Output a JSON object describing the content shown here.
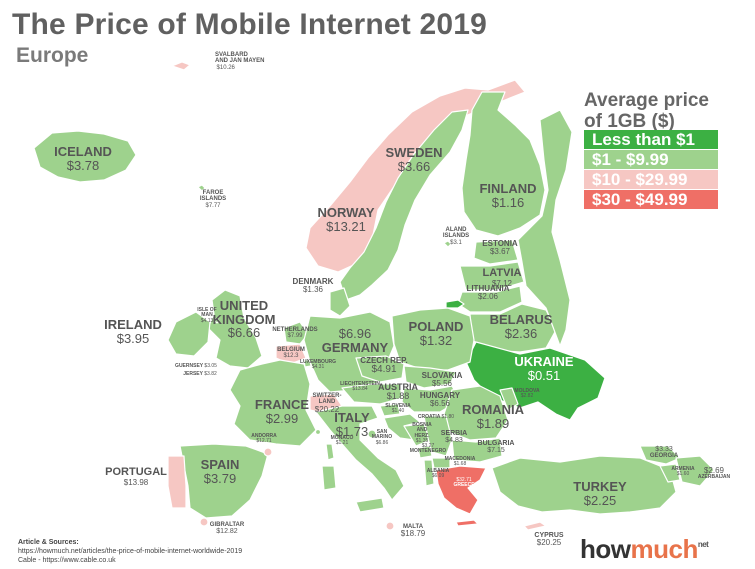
{
  "title": "The Price of Mobile Internet 2019",
  "subtitle": "Europe",
  "legend": {
    "title_line1": "Average price",
    "title_line2": "of 1GB ($)",
    "items": [
      {
        "label": "Less than $1",
        "color": "#3cb043"
      },
      {
        "label": "$1 - $9.99",
        "color": "#9ed28d"
      },
      {
        "label": "$10 - $29.99",
        "color": "#f6c7c3"
      },
      {
        "label": "$30 - $49.99",
        "color": "#ef6f66"
      }
    ]
  },
  "countries": {
    "svalbard": {
      "name": "SVALBARD\nAND JAN MAYEN",
      "price": "$10.26"
    },
    "iceland": {
      "name": "ICELAND",
      "price": "$3.78"
    },
    "faroe": {
      "name": "FAROE\nISLANDS",
      "price": "$7.77"
    },
    "norway": {
      "name": "NORWAY",
      "price": "$13.21"
    },
    "sweden": {
      "name": "SWEDEN",
      "price": "$3.66"
    },
    "finland": {
      "name": "FINLAND",
      "price": "$1.16"
    },
    "aland": {
      "name": "ALAND\nISLANDS",
      "price": "$3.1"
    },
    "estonia": {
      "name": "ESTONIA",
      "price": "$3.67"
    },
    "latvia": {
      "name": "LATVIA",
      "price": "$7.12"
    },
    "lithuania": {
      "name": "LITHUANIA",
      "price": "$2.06"
    },
    "denmark": {
      "name": "DENMARK",
      "price": "$1.36"
    },
    "united_kingdom": {
      "name": "UNITED\nKINGDOM",
      "price": "$6.66"
    },
    "isle_of_man": {
      "name": "ISLE OF\nMAN",
      "price": "$4.13"
    },
    "ireland": {
      "name": "IRELAND",
      "price": "$3.95"
    },
    "netherlands": {
      "name": "NETHERLANDS",
      "price": "$7.99"
    },
    "belgium": {
      "name": "BELGIUM",
      "price": "$12.3"
    },
    "luxembourg": {
      "name": "LUXEMBOURG",
      "price": "$4.31"
    },
    "germany": {
      "name": "GERMANY",
      "price": "$6.96"
    },
    "poland": {
      "name": "POLAND",
      "price": "$1.32"
    },
    "belarus": {
      "name": "BELARUS",
      "price": "$2.36"
    },
    "ukraine": {
      "name": "UKRAINE",
      "price": "$0.51"
    },
    "czech": {
      "name": "CZECH REP.",
      "price": "$4.91"
    },
    "slovakia": {
      "name": "SLOVAKIA",
      "price": "$5.56"
    },
    "austria": {
      "name": "AUSTRIA",
      "price": "$1.88"
    },
    "hungary": {
      "name": "HUNGARY",
      "price": "$6.56"
    },
    "moldova": {
      "name": "MOLDOVA",
      "price": "$2.82"
    },
    "romania": {
      "name": "ROMANIA",
      "price": "$1.89"
    },
    "liechtenstein": {
      "name": "LIECHTENSTEIN",
      "price": "$13.84"
    },
    "switzerland": {
      "name": "SWITZER-\nLAND",
      "price": "$20.22"
    },
    "slovenia": {
      "name": "SLOVENIA",
      "price": "$1.40"
    },
    "croatia": {
      "name": "CROATIA",
      "price": "$1.80"
    },
    "bosnia": {
      "name": "BOSNIA\nAND\nHERZ.",
      "price": "$1.35"
    },
    "serbia": {
      "name": "SERBIA",
      "price": "$4.83"
    },
    "montenegro": {
      "name": "MONTENEGRO",
      "price": "$3.27"
    },
    "macedonia": {
      "name": "MACEDONIA",
      "price": "$1.68"
    },
    "albania": {
      "name": "ALBANIA",
      "price": "$6.09"
    },
    "bulgaria": {
      "name": "BULGARIA",
      "price": "$7.15"
    },
    "greece": {
      "name": "GREECE",
      "price": "$32.71"
    },
    "france": {
      "name": "FRANCE",
      "price": "$2.99"
    },
    "guernsey": {
      "name": "GUERNSEY",
      "price": "$3.05"
    },
    "jersey": {
      "name": "JERSEY",
      "price": "$3.82"
    },
    "andorra": {
      "name": "ANDORRA",
      "price": "$12.71"
    },
    "monaco": {
      "name": "MONACO",
      "price": "$1.21"
    },
    "san_marino": {
      "name": "SAN\nMARINO",
      "price": "$6.86"
    },
    "italy": {
      "name": "ITALY",
      "price": "$1.73"
    },
    "spain": {
      "name": "SPAIN",
      "price": "$3.79"
    },
    "portugal": {
      "name": "PORTUGAL",
      "price": "$13.98"
    },
    "gibraltar": {
      "name": "GIBRALTAR",
      "price": "$12.82"
    },
    "malta": {
      "name": "MALTA",
      "price": "$18.79"
    },
    "cyprus": {
      "name": "CYPRUS",
      "price": "$20.25"
    },
    "turkey": {
      "name": "TURKEY",
      "price": "$2.25"
    },
    "georgia": {
      "name": "GEORGIA",
      "price": "$3.33"
    },
    "armenia": {
      "name": "ARMENIA",
      "price": "$1.60"
    },
    "azerbaijan": {
      "name": "AZERBAIJAN",
      "price": "$2.69"
    }
  },
  "sources": {
    "heading": "Article & Sources:",
    "line1": "https://howmuch.net/articles/the-price-of-mobile-internet-worldwide-2019",
    "line2": "Cable - https://www.cable.co.uk"
  },
  "logo": {
    "part1": "how",
    "part2": "much",
    "suffix": "net"
  }
}
